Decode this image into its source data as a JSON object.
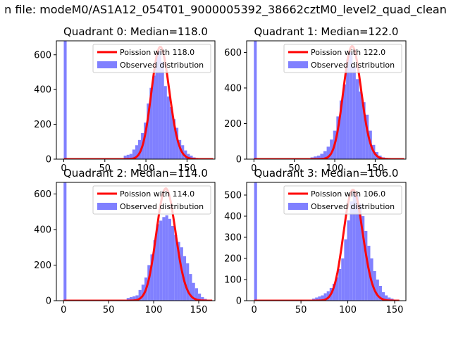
{
  "figure_title": "n file: modeM0/AS1A12_054T01_9000005392_38662cztM0_level2_quad_clean",
  "colors": {
    "bars": "#8080ff",
    "model": "#ff0000",
    "axes": "#000000"
  },
  "chart_data": [
    {
      "type": "bar",
      "title": "Quadrant 0: Median=118.0",
      "median": 118.0,
      "xlim": [
        -9,
        184
      ],
      "ylim": [
        0,
        680
      ],
      "xticks": [
        0,
        50,
        100,
        150
      ],
      "yticks": [
        0,
        200,
        400,
        600
      ],
      "legend": {
        "placement": "top-right",
        "entries": [
          "Poission with 118.0",
          "Observed distribution"
        ]
      },
      "series": [
        {
          "name": "Observed distribution",
          "kind": "histogram",
          "bin_edges": [
            0,
            3.5,
            73,
            76.5,
            80,
            83.5,
            87,
            90.5,
            94,
            97.5,
            101,
            104.5,
            108,
            111.5,
            115,
            118.5,
            122,
            125.5,
            129,
            132.5,
            136,
            139.5,
            143,
            146.5,
            150,
            153.5,
            157,
            160.5,
            164
          ],
          "counts": [
            680,
            0,
            20,
            25,
            30,
            55,
            80,
            110,
            150,
            210,
            320,
            410,
            480,
            600,
            620,
            560,
            420,
            360,
            300,
            230,
            180,
            110,
            80,
            50,
            30,
            20,
            10,
            5
          ]
        },
        {
          "name": "Poission with 118.0",
          "kind": "poisson_curve",
          "mean": 118.0,
          "amplitude": 645,
          "x_range": [
            0,
            182
          ]
        }
      ]
    },
    {
      "type": "bar",
      "title": "Quadrant 1: Median=122.0",
      "median": 122.0,
      "xlim": [
        -9,
        188
      ],
      "ylim": [
        0,
        665
      ],
      "xticks": [
        0,
        50,
        100,
        150
      ],
      "yticks": [
        0,
        200,
        400,
        600
      ],
      "legend": {
        "placement": "top-right",
        "entries": [
          "Poission with 122.0",
          "Observed distribution"
        ]
      },
      "series": [
        {
          "name": "Observed distribution",
          "kind": "histogram",
          "bin_edges": [
            0,
            3.5,
            70,
            74,
            78,
            82,
            86,
            90,
            94,
            98,
            102,
            106,
            110,
            114,
            118,
            122,
            126,
            130,
            134,
            138,
            142,
            146,
            150,
            154,
            158,
            162,
            166
          ],
          "counts": [
            665,
            0,
            10,
            15,
            20,
            30,
            45,
            70,
            110,
            160,
            240,
            330,
            420,
            560,
            600,
            520,
            450,
            380,
            320,
            250,
            160,
            80,
            40,
            20,
            10,
            5
          ]
        },
        {
          "name": "Poission with 122.0",
          "kind": "poisson_curve",
          "mean": 122.0,
          "amplitude": 635,
          "x_range": [
            0,
            186
          ]
        }
      ]
    },
    {
      "type": "bar",
      "title": "Quadrant 2: Median=114.0",
      "median": 114.0,
      "xlim": [
        -8,
        168
      ],
      "ylim": [
        0,
        665
      ],
      "xticks": [
        0,
        50,
        100,
        150
      ],
      "yticks": [
        0,
        200,
        400,
        600
      ],
      "legend": {
        "placement": "top-right",
        "entries": [
          "Poission with 114.0",
          "Observed distribution"
        ]
      },
      "series": [
        {
          "name": "Observed distribution",
          "kind": "histogram",
          "bin_edges": [
            0,
            3.2,
            70,
            73.3,
            76.6,
            79.9,
            83.2,
            86.5,
            89.8,
            93.1,
            96.4,
            99.7,
            103,
            106.3,
            109.6,
            112.9,
            116.2,
            119.5,
            122.8,
            126.1,
            129.4,
            132.7,
            136,
            139.3,
            142.6,
            145.9,
            149.2,
            152.5,
            155.8,
            159.1,
            162.4
          ],
          "counts": [
            665,
            0,
            15,
            20,
            25,
            30,
            60,
            90,
            130,
            200,
            260,
            340,
            430,
            450,
            470,
            480,
            460,
            420,
            370,
            330,
            300,
            250,
            210,
            150,
            100,
            70,
            40,
            20,
            10,
            5
          ]
        },
        {
          "name": "Poission with 114.0",
          "kind": "poisson_curve",
          "mean": 114.0,
          "amplitude": 630,
          "x_range": [
            0,
            165
          ]
        }
      ]
    },
    {
      "type": "bar",
      "title": "Quadrant 3: Median=106.0",
      "median": 106.0,
      "xlim": [
        -8,
        162
      ],
      "ylim": [
        0,
        560
      ],
      "xticks": [
        0,
        50,
        100,
        150
      ],
      "yticks": [
        0,
        100,
        200,
        300,
        400,
        500
      ],
      "legend": {
        "placement": "top-right",
        "entries": [
          "Poission with 106.0",
          "Observed distribution"
        ]
      },
      "series": [
        {
          "name": "Observed distribution",
          "kind": "histogram",
          "bin_edges": [
            0,
            3.1,
            62,
            65.1,
            68.2,
            71.3,
            74.4,
            77.5,
            80.6,
            83.7,
            86.8,
            89.9,
            93,
            96.1,
            99.2,
            102.3,
            105.4,
            108.5,
            111.6,
            114.7,
            117.8,
            120.9,
            124,
            127.1,
            130.2,
            133.3,
            136.4,
            139.5,
            142.6,
            145.7,
            148.8,
            151.9
          ],
          "counts": [
            560,
            0,
            10,
            15,
            20,
            25,
            35,
            45,
            60,
            80,
            110,
            150,
            200,
            290,
            380,
            470,
            520,
            500,
            460,
            400,
            330,
            260,
            200,
            140,
            100,
            70,
            40,
            25,
            15,
            10,
            5
          ]
        },
        {
          "name": "Poission with 106.0",
          "kind": "poisson_curve",
          "mean": 106.0,
          "amplitude": 525,
          "x_range": [
            0,
            155
          ]
        }
      ]
    }
  ]
}
